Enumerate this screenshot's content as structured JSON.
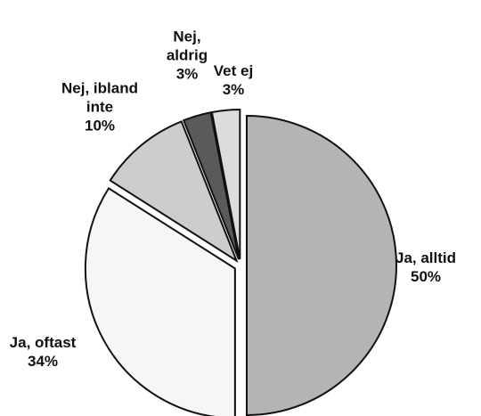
{
  "chart_data": {
    "type": "pie",
    "categories": [
      "Ja, alltid",
      "Ja, oftast",
      "Nej, ibland inte",
      "Nej, aldrig",
      "Vet ej"
    ],
    "values": [
      50,
      34,
      10,
      3,
      3
    ],
    "value_labels": [
      "50%",
      "34%",
      "10%",
      "3%",
      "3%"
    ],
    "colors": [
      "#b4b4b4",
      "#f6f6f6",
      "#cdcdcd",
      "#5a5a5a",
      "#dcdcdc"
    ]
  }
}
